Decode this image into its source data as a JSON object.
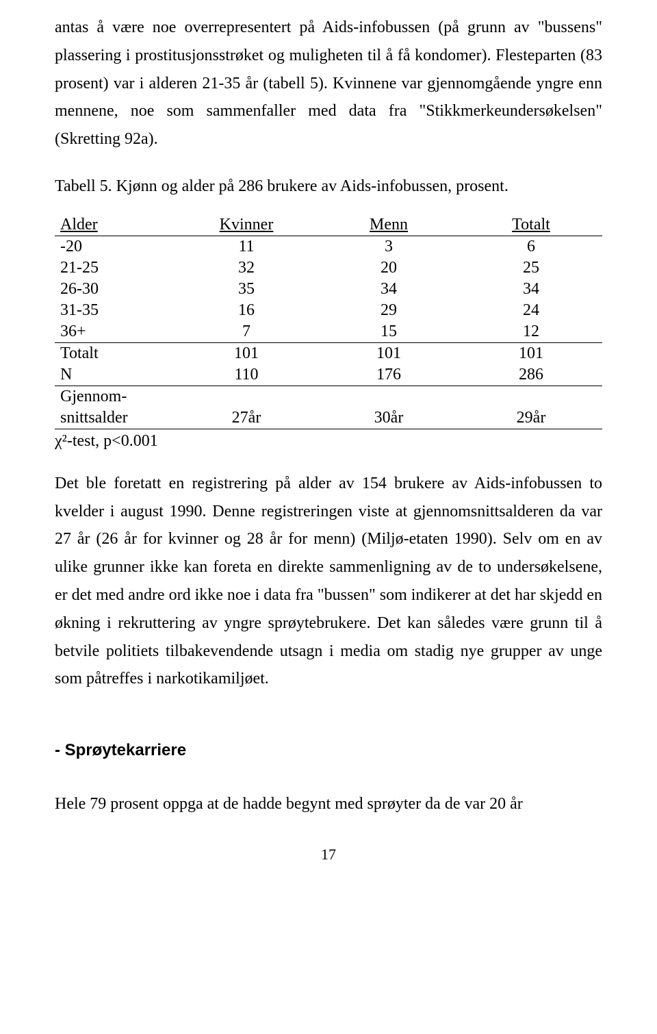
{
  "para1": "antas å være noe overrepresentert på Aids-infobussen (på grunn av \"bussens\" plassering i prostitusjonsstrøket og muligheten til å få kondomer). Flesteparten (83 prosent) var i alderen 21-35 år (tabell 5). Kvinnene var gjennomgående yngre enn mennene, noe som sammenfaller med data fra \"Stikkmerkeundersøkelsen\" (Skretting 92a).",
  "tableCaption": "Tabell 5. Kjønn og alder på 286 brukere av Aids-infobussen, prosent.",
  "table": {
    "headers": [
      "Alder",
      "Kvinner",
      "Menn",
      "Totalt"
    ],
    "body": [
      [
        "-20",
        "11",
        "3",
        "6"
      ],
      [
        "21-25",
        "32",
        "20",
        "25"
      ],
      [
        "26-30",
        "35",
        "34",
        "34"
      ],
      [
        "31-35",
        "16",
        "29",
        "24"
      ]
    ],
    "subtotalBorder": [
      "36+",
      "7",
      "15",
      "12"
    ],
    "totalRow": [
      "Totalt",
      "101",
      "101",
      "101"
    ],
    "nRow": [
      "N",
      "110",
      "176",
      "286"
    ],
    "meanLabel1": "Gjennom-",
    "meanRow": [
      "snittsalder",
      "27år",
      "30år",
      "29år"
    ]
  },
  "chiTest": "χ²-test, p<0.001",
  "para2": "Det ble foretatt en registrering på alder av 154 brukere av Aids-infobussen to kvelder i august 1990. Denne registreringen viste at gjennomsnittsalderen da var 27 år (26 år for kvinner og 28 år for menn) (Miljø-etaten 1990). Selv om en av ulike grunner ikke kan foreta en direkte sammenligning av de to undersøkelsene, er det med andre ord ikke noe i data fra \"bussen\" som indikerer at det har skjedd en økning i rekruttering av yngre sprøytebrukere. Det kan således være grunn til å betvile politiets tilbakevendende utsagn i media om stadig nye grupper av unge som påtreffes i narkotikamiljøet.",
  "sectionHeading": "- Sprøytekarriere",
  "para3": "Hele 79 prosent oppga at de hadde begynt med sprøyter da de var 20 år",
  "pageNumber": "17"
}
